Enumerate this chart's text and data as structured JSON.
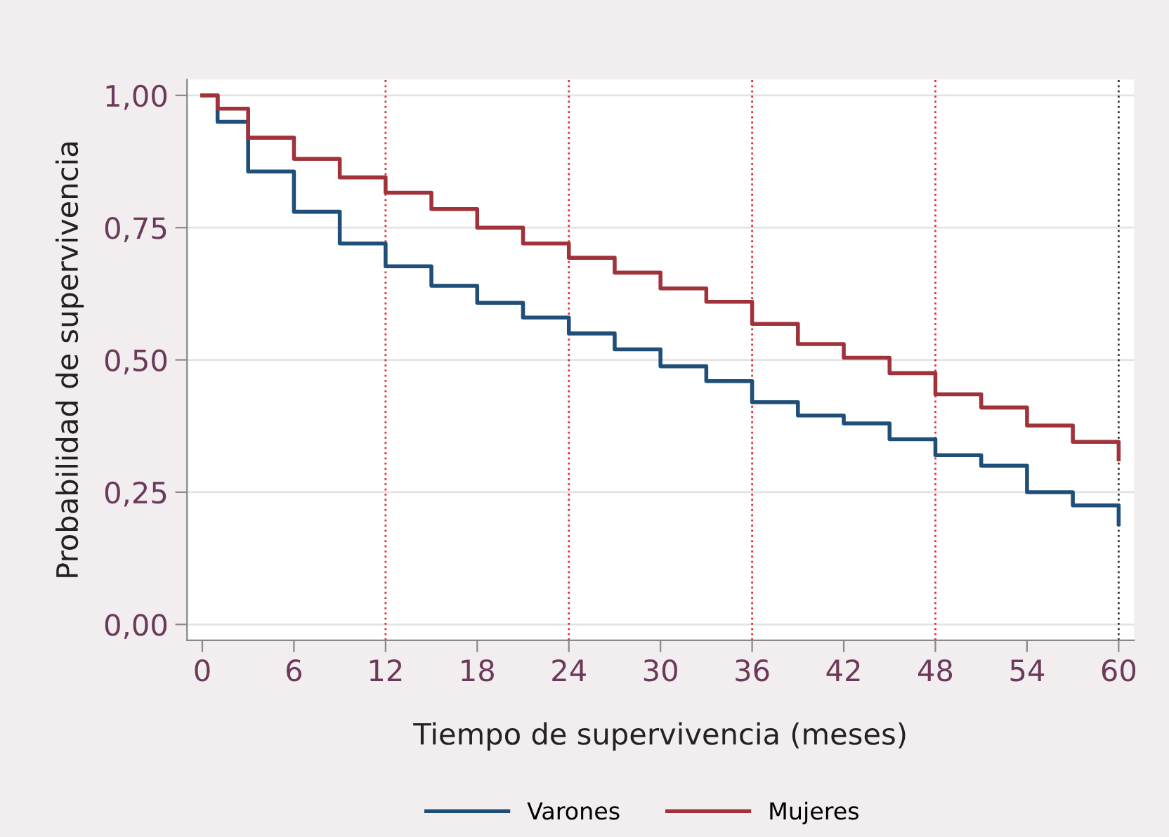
{
  "chart_data": {
    "type": "step",
    "xlabel": "Tiempo de supervivencia (meses)",
    "ylabel": "Probabilidad de supervivencia",
    "x": [
      0,
      1,
      3,
      6,
      9,
      12,
      15,
      18,
      21,
      24,
      27,
      30,
      33,
      36,
      39,
      42,
      45,
      48,
      51,
      54,
      57,
      60
    ],
    "series": [
      {
        "name": "Varones",
        "color": "#1f4e79",
        "values": [
          1.0,
          0.95,
          0.856,
          0.78,
          0.72,
          0.677,
          0.64,
          0.608,
          0.58,
          0.55,
          0.52,
          0.488,
          0.46,
          0.42,
          0.395,
          0.38,
          0.35,
          0.32,
          0.3,
          0.25,
          0.225,
          0.19
        ]
      },
      {
        "name": "Mujeres",
        "color": "#a0323a",
        "values": [
          1.0,
          0.975,
          0.92,
          0.88,
          0.845,
          0.816,
          0.785,
          0.75,
          0.72,
          0.693,
          0.665,
          0.635,
          0.61,
          0.568,
          0.53,
          0.504,
          0.475,
          0.435,
          0.41,
          0.376,
          0.345,
          0.312
        ]
      }
    ],
    "xlim": [
      -1,
      61
    ],
    "xticks": [
      0,
      6,
      12,
      18,
      24,
      30,
      36,
      42,
      48,
      54,
      60
    ],
    "ylim": [
      -0.03,
      1.03
    ],
    "yticks": [
      {
        "value": 0,
        "label": "0,00"
      },
      {
        "value": 0.25,
        "label": "0,25"
      },
      {
        "value": 0.5,
        "label": "0,50"
      },
      {
        "value": 0.75,
        "label": "0,75"
      },
      {
        "value": 1,
        "label": "1,00"
      }
    ],
    "ref_lines": [
      {
        "axis": "x",
        "value": 12,
        "color": "#e03030",
        "line_style": "dotted"
      },
      {
        "axis": "x",
        "value": 24,
        "color": "#e03030",
        "line_style": "dotted"
      },
      {
        "axis": "x",
        "value": 36,
        "color": "#e03030",
        "line_style": "dotted"
      },
      {
        "axis": "x",
        "value": 48,
        "color": "#e03030",
        "line_style": "dotted"
      },
      {
        "axis": "x",
        "value": 60,
        "color": "#333333",
        "line_style": "dotted"
      }
    ],
    "grid": "y",
    "legend": "bottom",
    "line_style": "solid",
    "marker": "none"
  }
}
